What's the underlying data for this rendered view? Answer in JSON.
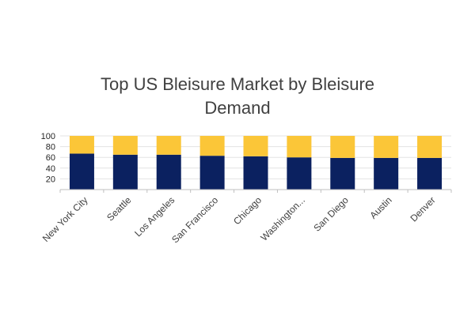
{
  "chart_data": {
    "type": "bar",
    "stacked": true,
    "title": "Top US Bleisure Market by Bleisure Demand",
    "categories": [
      "New York City",
      "Seattle",
      "Los Angeles",
      "San Francisco",
      "Chicago",
      "Washington...",
      "San Diego",
      "Austin",
      "Denver"
    ],
    "series": [
      {
        "values": [
          67,
          65,
          65,
          63,
          62,
          60,
          59,
          59,
          59
        ],
        "color": "#0b2160"
      },
      {
        "values": [
          33,
          35,
          35,
          37,
          38,
          40,
          41,
          41,
          41
        ],
        "color": "#fbc638"
      }
    ],
    "yticks": [
      "20",
      "40",
      "60",
      "80",
      "100"
    ],
    "ylim": [
      0,
      100
    ],
    "grid": true,
    "legend": "none"
  }
}
